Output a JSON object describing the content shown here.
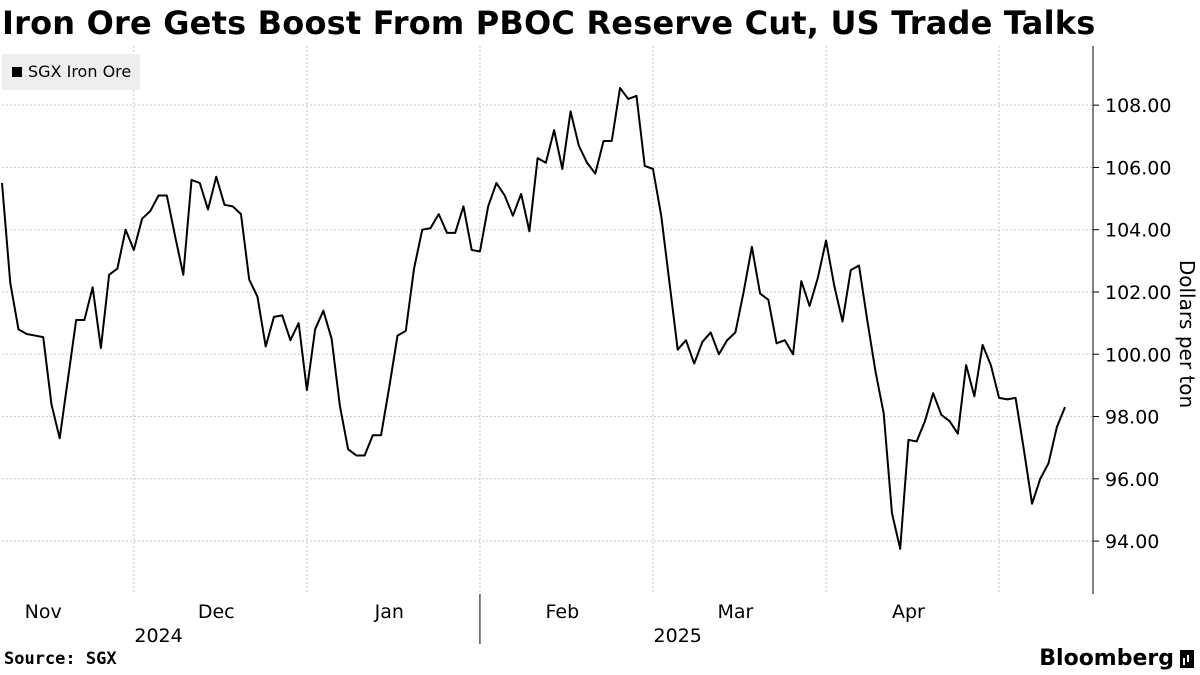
{
  "title": "Iron Ore Gets Boost From PBOC Reserve Cut, US Trade Talks",
  "source": "Source: SGX",
  "brand": "Bloomberg",
  "chart_data": {
    "type": "line",
    "series": [
      {
        "name": "SGX Iron Ore",
        "color": "#000000",
        "values": [
          105.5,
          102.3,
          100.8,
          100.65,
          100.6,
          100.55,
          98.4,
          97.3,
          99.2,
          101.1,
          101.1,
          102.15,
          100.2,
          102.55,
          102.75,
          104.0,
          103.35,
          104.35,
          104.6,
          105.1,
          105.1,
          103.8,
          102.55,
          105.6,
          105.5,
          104.65,
          105.7,
          104.8,
          104.75,
          104.5,
          102.4,
          101.85,
          100.25,
          101.2,
          101.25,
          100.45,
          101.0,
          98.85,
          100.8,
          101.4,
          100.5,
          98.35,
          96.95,
          96.75,
          96.75,
          97.4,
          97.4,
          98.95,
          100.6,
          100.75,
          102.75,
          104.0,
          104.05,
          104.5,
          103.9,
          103.9,
          104.75,
          103.35,
          103.3,
          104.75,
          105.5,
          105.1,
          104.45,
          105.15,
          103.95,
          106.3,
          106.15,
          107.2,
          105.95,
          107.8,
          106.7,
          106.15,
          105.8,
          106.85,
          106.85,
          108.55,
          108.2,
          108.3,
          106.05,
          105.95,
          104.45,
          102.3,
          100.15,
          100.45,
          99.7,
          100.4,
          100.7,
          100.0,
          100.45,
          100.7,
          102.0,
          103.45,
          101.95,
          101.75,
          100.35,
          100.45,
          100.0,
          102.35,
          101.55,
          102.45,
          103.65,
          102.2,
          101.05,
          102.7,
          102.85,
          101.1,
          99.45,
          98.1,
          94.9,
          93.75,
          97.25,
          97.2,
          97.85,
          98.75,
          98.05,
          97.85,
          97.45,
          99.65,
          98.65,
          100.3,
          99.65,
          98.6,
          98.55,
          98.6,
          96.95,
          95.2,
          96.0,
          96.5,
          97.65,
          98.3
        ]
      }
    ],
    "x_month_labels": [
      {
        "label": "Nov",
        "index": 5
      },
      {
        "label": "Dec",
        "index": 26
      },
      {
        "label": "Jan",
        "index": 47
      },
      {
        "label": "Feb",
        "index": 68
      },
      {
        "label": "Mar",
        "index": 89
      },
      {
        "label": "Apr",
        "index": 110
      }
    ],
    "x_month_boundaries": [
      16,
      37,
      58,
      79,
      100,
      121
    ],
    "x_year_labels": [
      {
        "label": "2024",
        "index": 19
      },
      {
        "label": "2025",
        "index": 82
      }
    ],
    "yticks": [
      94,
      96,
      98,
      100,
      102,
      104,
      106,
      108
    ],
    "ytick_labels": [
      "94.00",
      "96.00",
      "98.00",
      "100.00",
      "102.00",
      "104.00",
      "106.00",
      "108.00"
    ],
    "ylim": [
      92.3,
      109.9
    ],
    "ylabel": "Dollars per ton",
    "xlabel": "",
    "legend_position": "top-left",
    "grid": true
  }
}
